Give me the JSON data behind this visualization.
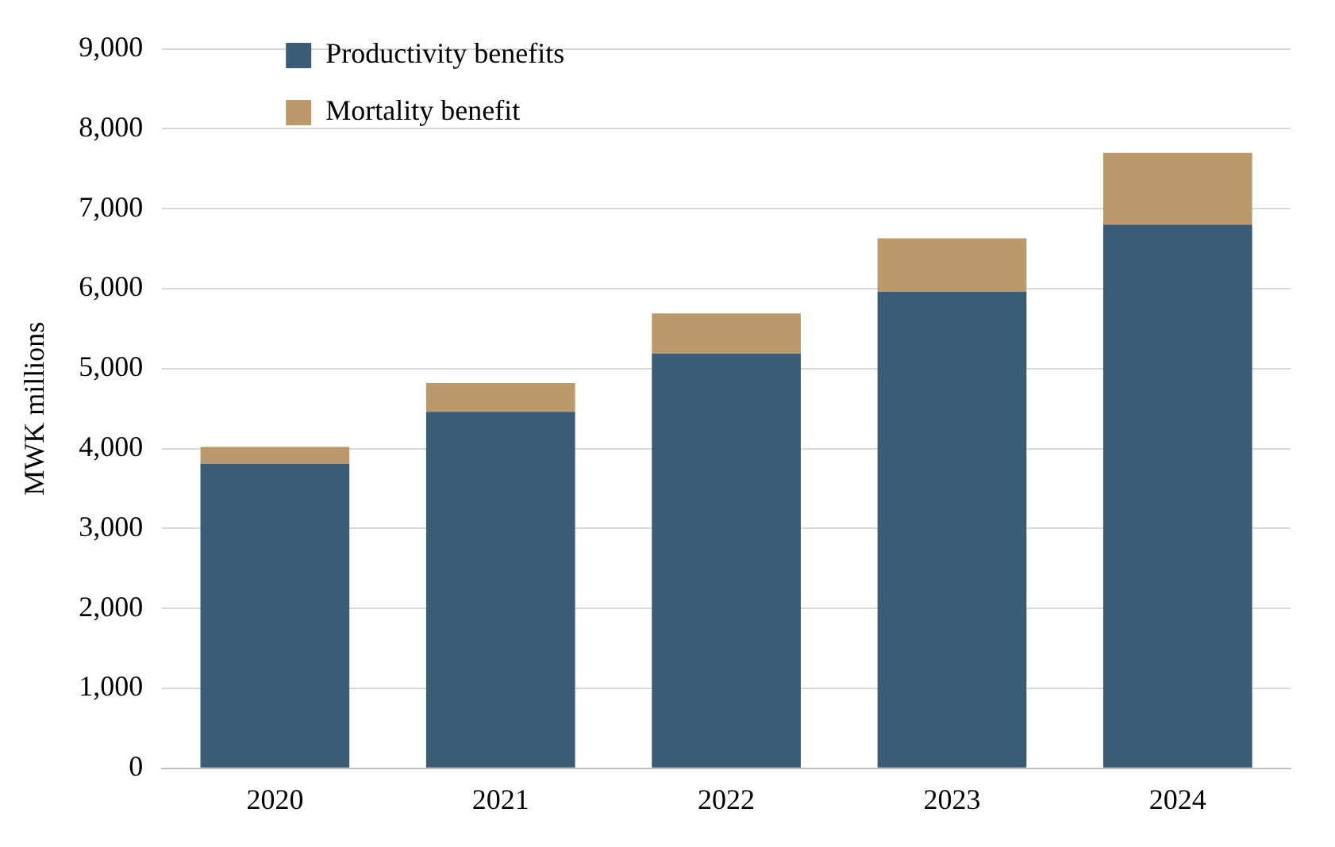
{
  "chart_data": {
    "type": "bar",
    "ylabel": "MWK millions",
    "categories": [
      "2020",
      "2021",
      "2022",
      "2023",
      "2024"
    ],
    "series": [
      {
        "name": "Productivity benefits",
        "color": "#3a5c74",
        "values": [
          3810,
          4460,
          5190,
          5960,
          6800
        ]
      },
      {
        "name": "Mortality benefit",
        "color": "#bb996b",
        "values": [
          210,
          360,
          500,
          670,
          900
        ]
      }
    ],
    "stacked": true,
    "ylim": [
      0,
      9000
    ],
    "yticks": [
      0,
      {
        "value": 1000,
        "label": "1,000"
      },
      {
        "value": 2000,
        "label": "2,000"
      },
      {
        "value": 3000,
        "label": "3,000"
      },
      {
        "value": 4000,
        "label": "4,000"
      },
      {
        "value": 5000,
        "label": "5,000"
      },
      {
        "value": 6000,
        "label": "6,000"
      },
      {
        "value": 7000,
        "label": "7,000"
      },
      {
        "value": 8000,
        "label": "8,000"
      },
      {
        "value": 9000,
        "label": "9,000"
      }
    ],
    "grid": "y",
    "legend": "top left"
  }
}
